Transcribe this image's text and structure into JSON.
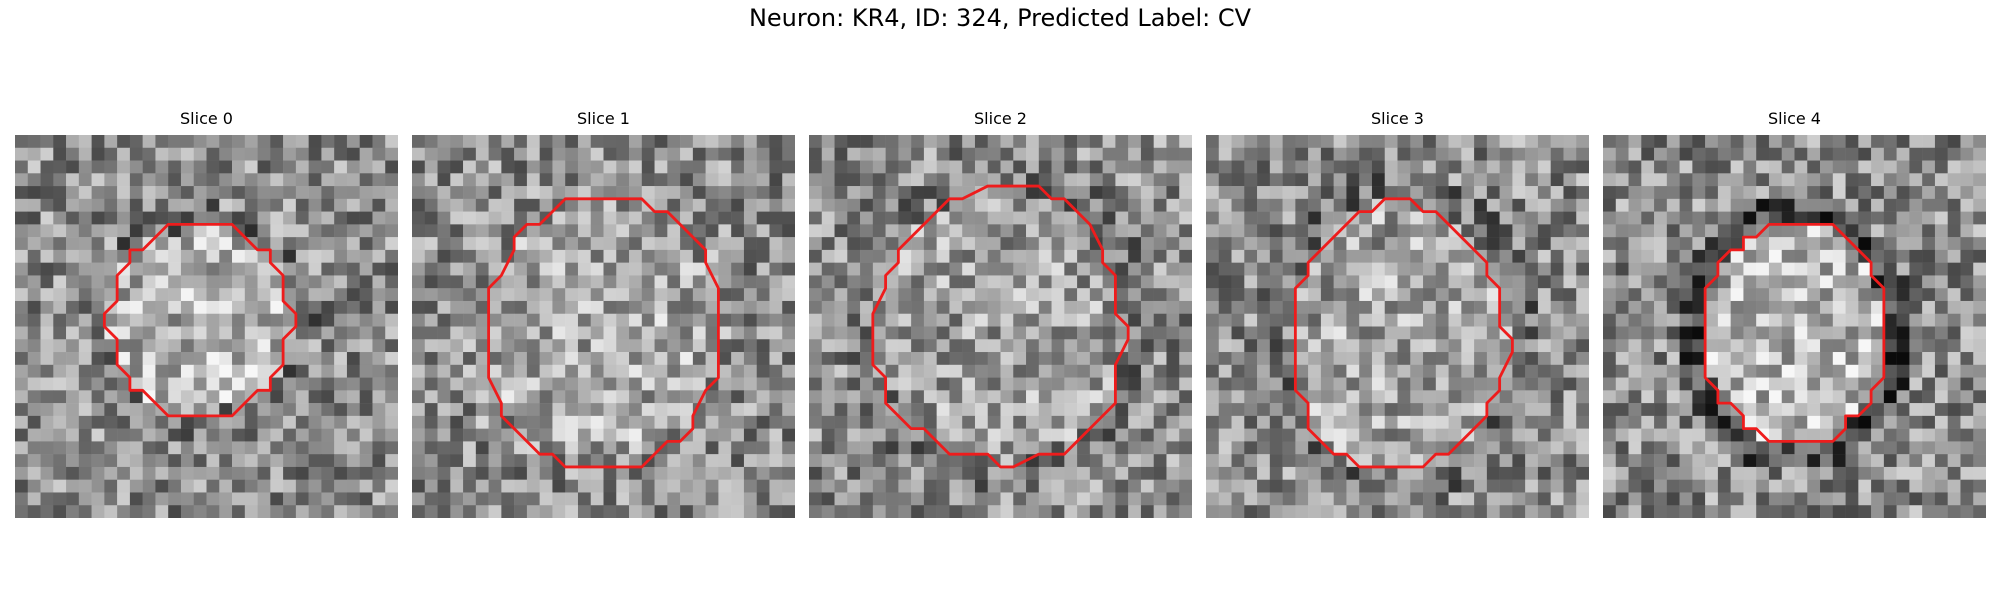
{
  "figure": {
    "title": "Neuron: KR4, ID: 324, Predicted Label: CV",
    "contour_color": "#ee1c1c",
    "panels": [
      {
        "title": "Slice 0"
      },
      {
        "title": "Slice 1"
      },
      {
        "title": "Slice 2"
      },
      {
        "title": "Slice 3"
      },
      {
        "title": "Slice 4"
      }
    ]
  }
}
